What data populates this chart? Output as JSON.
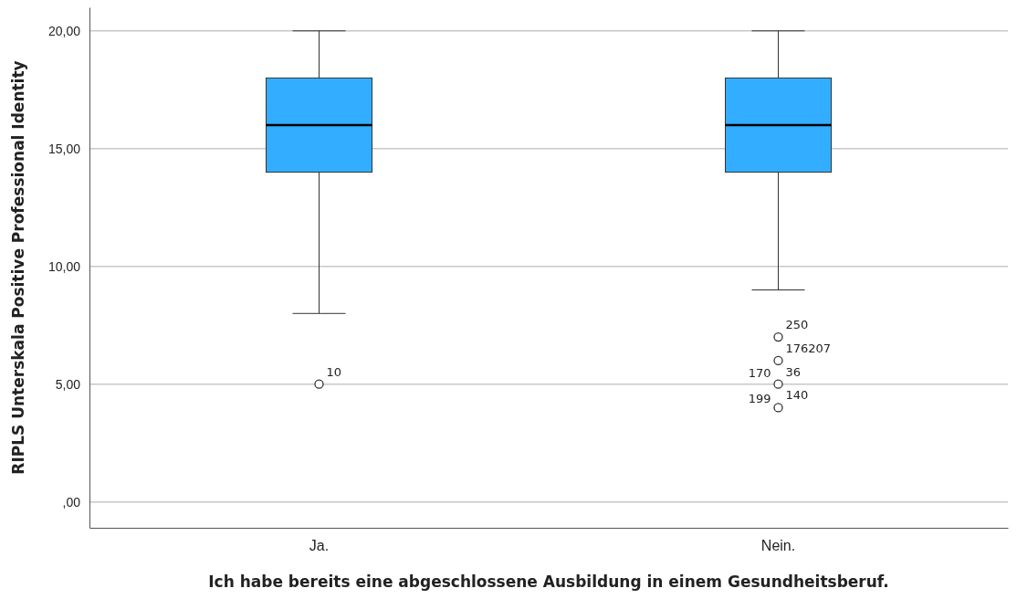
{
  "chart_data": {
    "type": "box",
    "xlabel": "Ich habe bereits eine abgeschlossene Ausbildung in einem Gesundheitsberuf.",
    "ylabel": "RIPLS Unterskala Positive Professional Identity",
    "categories": [
      "Ja.",
      "Nein."
    ],
    "series": [
      {
        "color": "#33adff",
        "boxes": [
          {
            "low": 8,
            "q1": 14,
            "median": 16,
            "q3": 18,
            "high": 20
          },
          {
            "low": 9,
            "q1": 14,
            "median": 16,
            "q3": 18,
            "high": 20
          }
        ]
      },
      {
        "type": "scatter",
        "x": [
          "Ja.",
          "Nein.",
          "Nein.",
          "Nein.",
          "Nein."
        ],
        "values": [
          5,
          7,
          6,
          5,
          4
        ],
        "color": "#333333"
      }
    ],
    "marker": "circle",
    "ylim": [
      -1.1,
      21
    ],
    "yticks": [
      {
        "value": 0,
        "label": ",00"
      },
      {
        "value": 5,
        "label": "5,00"
      },
      {
        "value": 10,
        "label": "10,00"
      },
      {
        "value": 15,
        "label": "15,00"
      },
      {
        "value": 20,
        "label": "20,00"
      }
    ],
    "grid": "y",
    "annotations": [
      {
        "text": "10",
        "x": "Ja.",
        "y": 5
      },
      {
        "text": "250",
        "x": "Nein.",
        "y": 7
      },
      {
        "text": "176207",
        "x": "Nein.",
        "y": 6
      },
      {
        "text": "36",
        "x": "Nein.",
        "y": 5
      },
      {
        "text": "170",
        "x": "Nein.",
        "y": 5
      },
      {
        "text": "199",
        "x": "Nein.",
        "y": 5
      },
      {
        "text": "140",
        "x": "Nein.",
        "y": 4
      }
    ]
  }
}
